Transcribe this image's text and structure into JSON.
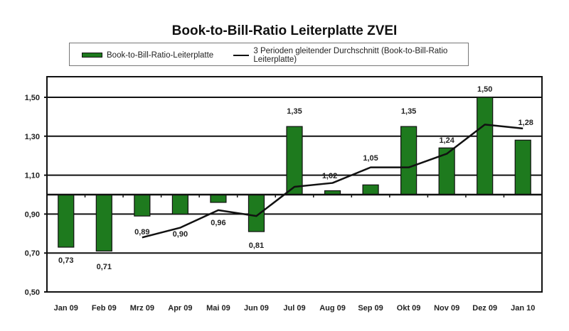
{
  "chart_data": {
    "type": "bar",
    "title": "Book-to-Bill-Ratio Leiterplatte ZVEI",
    "xlabel": "",
    "ylabel": "",
    "ylim": [
      0.5,
      1.6
    ],
    "baseline": 1.0,
    "yticks": [
      "0,50",
      "0,70",
      "0,90",
      "1,10",
      "1,30",
      "1,50"
    ],
    "ytick_values": [
      0.5,
      0.7,
      0.9,
      1.1,
      1.3,
      1.5
    ],
    "grid": true,
    "legend_position": "top",
    "categories": [
      "Jan 09",
      "Feb 09",
      "Mrz 09",
      "Apr 09",
      "Mai 09",
      "Jun 09",
      "Jul 09",
      "Aug 09",
      "Sep 09",
      "Okt 09",
      "Nov 09",
      "Dez 09",
      "Jan 10"
    ],
    "series": [
      {
        "name": "Book-to-Bill-Ratio-Leiterplatte",
        "type": "bar",
        "color": "#1e7a1e",
        "values": [
          0.73,
          0.71,
          0.89,
          0.9,
          0.96,
          0.81,
          1.35,
          1.02,
          1.05,
          1.35,
          1.24,
          1.5,
          1.28
        ]
      },
      {
        "name": "3 Perioden gleitender Durchschnitt (Book-to-Bill-Ratio Leiterplatte)",
        "type": "line",
        "color": "#111111",
        "values": [
          null,
          null,
          0.78,
          0.83,
          0.92,
          0.89,
          1.04,
          1.06,
          1.14,
          1.14,
          1.21,
          1.36,
          1.34
        ]
      }
    ],
    "data_labels": [
      "0,73",
      "0,71",
      "0,89",
      "0,90",
      "0,96",
      "0,81",
      "1,35",
      "1,02",
      "1,05",
      "1,35",
      "1,24",
      "1,50",
      "1,28"
    ]
  },
  "legend": {
    "bar_label": "Book-to-Bill-Ratio-Leiterplatte",
    "line_label": "3 Perioden gleitender Durchschnitt (Book-to-Bill-Ratio Leiterplatte)"
  }
}
